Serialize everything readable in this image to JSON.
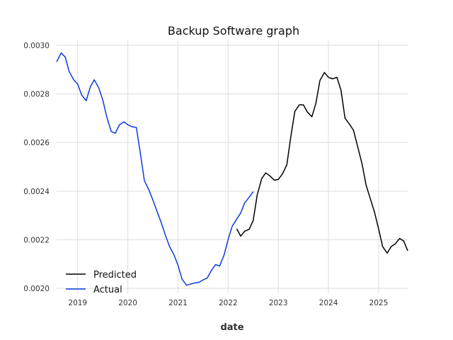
{
  "chart_data": {
    "type": "line",
    "title": "Backup Software graph",
    "xlabel": "date",
    "ylabel": "",
    "xlim": [
      2018.58,
      2025.58
    ],
    "ylim": [
      0.00198,
      0.00302
    ],
    "grid": true,
    "legend_position": "lower-left",
    "x_ticks": [
      "2019",
      "2020",
      "2021",
      "2022",
      "2023",
      "2024",
      "2025"
    ],
    "y_ticks": [
      "0.0020",
      "0.0022",
      "0.0024",
      "0.0026",
      "0.0028",
      "0.0030"
    ],
    "series": [
      {
        "name": "Predicted",
        "color": "#000000",
        "x": [
          2022.17,
          2022.25,
          2022.33,
          2022.42,
          2022.5,
          2022.58,
          2022.67,
          2022.75,
          2022.83,
          2022.92,
          2023.0,
          2023.08,
          2023.17,
          2023.25,
          2023.33,
          2023.42,
          2023.5,
          2023.58,
          2023.67,
          2023.75,
          2023.83,
          2023.92,
          2024.0,
          2024.08,
          2024.17,
          2024.25,
          2024.33,
          2024.42,
          2024.5,
          2024.58,
          2024.67,
          2024.75,
          2024.83,
          2024.92,
          2025.0,
          2025.08,
          2025.17,
          2025.25,
          2025.33,
          2025.42,
          2025.5,
          2025.58
        ],
        "values": [
          0.002245,
          0.002215,
          0.002235,
          0.002243,
          0.00228,
          0.002385,
          0.002452,
          0.002475,
          0.002463,
          0.002445,
          0.002448,
          0.00247,
          0.002508,
          0.002625,
          0.002728,
          0.002755,
          0.002755,
          0.002725,
          0.002706,
          0.002762,
          0.002855,
          0.002888,
          0.002868,
          0.002862,
          0.002868,
          0.002815,
          0.0027,
          0.002675,
          0.00265,
          0.002585,
          0.002512,
          0.002425,
          0.002372,
          0.002312,
          0.002245,
          0.002172,
          0.002145,
          0.002172,
          0.002183,
          0.002205,
          0.002195,
          0.002155
        ]
      },
      {
        "name": "Actual",
        "color": "#0b3be0",
        "x": [
          2018.58,
          2018.67,
          2018.75,
          2018.83,
          2018.92,
          2019.0,
          2019.08,
          2019.17,
          2019.25,
          2019.33,
          2019.42,
          2019.5,
          2019.58,
          2019.67,
          2019.75,
          2019.83,
          2019.92,
          2020.0,
          2020.08,
          2020.17,
          2020.25,
          2020.33,
          2020.42,
          2020.5,
          2020.58,
          2020.67,
          2020.75,
          2020.83,
          2020.92,
          2021.0,
          2021.08,
          2021.17,
          2021.25,
          2021.33,
          2021.42,
          2021.5,
          2021.58,
          2021.67,
          2021.75,
          2021.83,
          2021.92,
          2022.0,
          2022.08,
          2022.17,
          2022.25,
          2022.33,
          2022.42,
          2022.5
        ],
        "values": [
          0.002932,
          0.002968,
          0.002952,
          0.002892,
          0.002858,
          0.00284,
          0.002795,
          0.002772,
          0.002828,
          0.002858,
          0.002825,
          0.002775,
          0.002705,
          0.002645,
          0.002638,
          0.002672,
          0.002685,
          0.002673,
          0.002665,
          0.002662,
          0.002555,
          0.002443,
          0.002405,
          0.002363,
          0.002318,
          0.002268,
          0.002218,
          0.002173,
          0.002138,
          0.002095,
          0.002038,
          0.002013,
          0.002018,
          0.002022,
          0.002025,
          0.002035,
          0.002042,
          0.002075,
          0.002098,
          0.002092,
          0.002138,
          0.002202,
          0.002255,
          0.002285,
          0.00231,
          0.002352,
          0.002375,
          0.002398
        ]
      }
    ]
  }
}
